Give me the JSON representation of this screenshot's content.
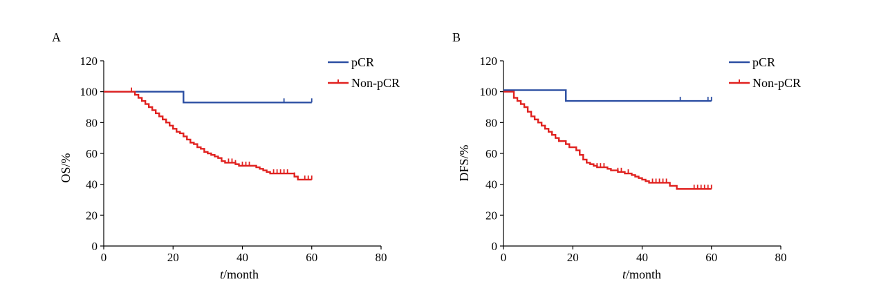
{
  "chart_data": [
    {
      "type": "line",
      "panel_label": "A",
      "xlabel_italic": "t",
      "xlabel_rest": "/month",
      "ylabel": "OS/%",
      "xlim": [
        0,
        80
      ],
      "ylim": [
        0,
        120
      ],
      "xticks": [
        "0",
        "20",
        "40",
        "60",
        "80"
      ],
      "yticks": [
        "0",
        "20",
        "40",
        "60",
        "80",
        "100",
        "120"
      ],
      "grid": false,
      "legend_position": "top-right",
      "series": [
        {
          "name": "pCR",
          "color": "#2b4ea2",
          "steps": [
            [
              0,
              100
            ],
            [
              23,
              93
            ],
            [
              60,
              93
            ]
          ],
          "censor_x": [
            52,
            60
          ]
        },
        {
          "name": "Non-pCR",
          "color": "#e0211f",
          "steps": [
            [
              0,
              100
            ],
            [
              9,
              98
            ],
            [
              10,
              96
            ],
            [
              11,
              94
            ],
            [
              12,
              92
            ],
            [
              13,
              90
            ],
            [
              14,
              88
            ],
            [
              15,
              86
            ],
            [
              16,
              84
            ],
            [
              17,
              82
            ],
            [
              18,
              80
            ],
            [
              19,
              78
            ],
            [
              20,
              76
            ],
            [
              21,
              74
            ],
            [
              22,
              73
            ],
            [
              23,
              71
            ],
            [
              24,
              69
            ],
            [
              25,
              67
            ],
            [
              26,
              66
            ],
            [
              27,
              64
            ],
            [
              28,
              63
            ],
            [
              29,
              61
            ],
            [
              30,
              60
            ],
            [
              31,
              59
            ],
            [
              32,
              58
            ],
            [
              33,
              57
            ],
            [
              34,
              55
            ],
            [
              35,
              54
            ],
            [
              36,
              54
            ],
            [
              38,
              53
            ],
            [
              39,
              52
            ],
            [
              43,
              52
            ],
            [
              44,
              51
            ],
            [
              45,
              50
            ],
            [
              46,
              49
            ],
            [
              47,
              48
            ],
            [
              48,
              47
            ],
            [
              53,
              47
            ],
            [
              55,
              45
            ],
            [
              56,
              43
            ],
            [
              60,
              43
            ]
          ],
          "censor_x": [
            8,
            36,
            37,
            38,
            40,
            41,
            42,
            49,
            50,
            51,
            52,
            53,
            55,
            58,
            59,
            60
          ]
        }
      ]
    },
    {
      "type": "line",
      "panel_label": "B",
      "xlabel_italic": "t",
      "xlabel_rest": "/month",
      "ylabel": "DFS/%",
      "xlim": [
        0,
        80
      ],
      "ylim": [
        0,
        120
      ],
      "xticks": [
        "0",
        "20",
        "40",
        "60",
        "80"
      ],
      "yticks": [
        "0",
        "20",
        "40",
        "60",
        "80",
        "100",
        "120"
      ],
      "grid": false,
      "legend_position": "top-right",
      "series": [
        {
          "name": "pCR",
          "color": "#2b4ea2",
          "steps": [
            [
              0,
              101
            ],
            [
              18,
              94
            ],
            [
              60,
              94
            ]
          ],
          "censor_x": [
            51,
            59,
            60
          ]
        },
        {
          "name": "Non-pCR",
          "color": "#e0211f",
          "steps": [
            [
              0,
              100
            ],
            [
              3,
              96
            ],
            [
              4,
              94
            ],
            [
              5,
              92
            ],
            [
              6,
              90
            ],
            [
              7,
              87
            ],
            [
              8,
              84
            ],
            [
              9,
              82
            ],
            [
              10,
              80
            ],
            [
              11,
              78
            ],
            [
              12,
              76
            ],
            [
              13,
              74
            ],
            [
              14,
              72
            ],
            [
              15,
              70
            ],
            [
              16,
              68
            ],
            [
              18,
              66
            ],
            [
              19,
              64
            ],
            [
              21,
              62
            ],
            [
              22,
              59
            ],
            [
              23,
              56
            ],
            [
              24,
              54
            ],
            [
              25,
              53
            ],
            [
              26,
              52
            ],
            [
              27,
              51
            ],
            [
              30,
              50
            ],
            [
              31,
              49
            ],
            [
              33,
              48
            ],
            [
              35,
              47
            ],
            [
              37,
              46
            ],
            [
              38,
              45
            ],
            [
              39,
              44
            ],
            [
              40,
              43
            ],
            [
              41,
              42
            ],
            [
              42,
              41
            ],
            [
              47,
              41
            ],
            [
              48,
              39
            ],
            [
              50,
              37
            ],
            [
              60,
              37
            ]
          ],
          "censor_x": [
            27,
            28,
            29,
            33,
            34,
            36,
            43,
            44,
            45,
            46,
            47,
            55,
            56,
            57,
            58,
            59,
            60
          ]
        }
      ]
    }
  ]
}
